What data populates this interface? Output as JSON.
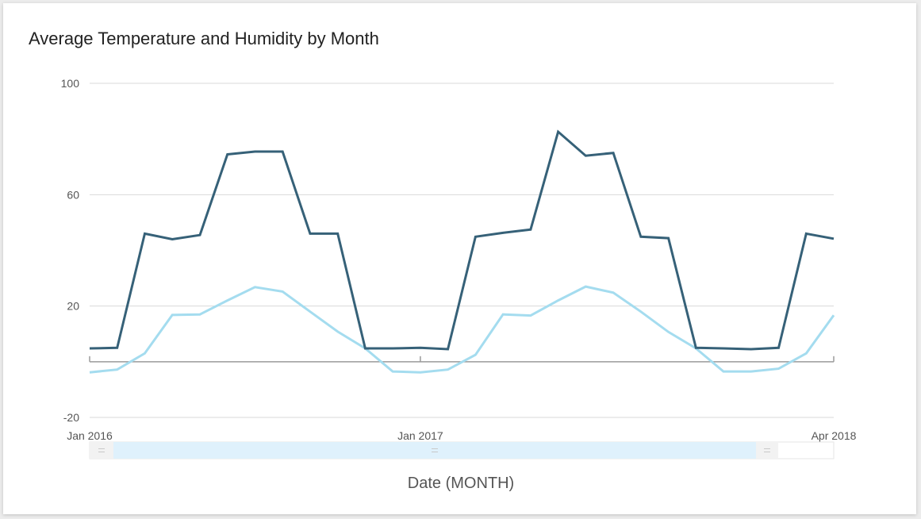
{
  "chart_data": {
    "type": "line",
    "title": "Average Temperature and Humidity by Month",
    "xlabel": "Date (MONTH)",
    "ylabel": "",
    "ylim": [
      -20,
      100
    ],
    "y_ticks": [
      100,
      60,
      20,
      -20
    ],
    "x_tick_labels": [
      {
        "label": "Jan 2016",
        "index": 0
      },
      {
        "label": "Jan 2017",
        "index": 12
      },
      {
        "label": "Apr 2018",
        "index": 27
      }
    ],
    "x": [
      "Jan 2016",
      "Feb 2016",
      "Mar 2016",
      "Apr 2016",
      "May 2016",
      "Jun 2016",
      "Jul 2016",
      "Aug 2016",
      "Sep 2016",
      "Oct 2016",
      "Nov 2016",
      "Dec 2016",
      "Jan 2017",
      "Feb 2017",
      "Mar 2017",
      "Apr 2017",
      "May 2017",
      "Jun 2017",
      "Jul 2017",
      "Aug 2017",
      "Sep 2017",
      "Oct 2017",
      "Nov 2017",
      "Dec 2017",
      "Jan 2018",
      "Feb 2018",
      "Mar 2018",
      "Apr 2018"
    ],
    "series": [
      {
        "color": "#366178",
        "values": [
          4.8,
          5.0,
          46.0,
          44.0,
          45.5,
          74.5,
          75.5,
          75.5,
          46.0,
          46.0,
          4.8,
          4.8,
          5.0,
          4.5,
          44.9,
          46.3,
          47.5,
          82.6,
          74.0,
          75.0,
          44.9,
          44.4,
          5.0,
          4.8,
          4.5,
          5.0,
          46.0,
          44.2
        ]
      },
      {
        "color": "#a4dcef",
        "values": [
          -3.8,
          -2.8,
          3.0,
          16.8,
          17.0,
          22.0,
          26.8,
          25.2,
          18.0,
          10.8,
          4.8,
          -3.5,
          -3.8,
          -2.8,
          2.5,
          17.0,
          16.6,
          22.0,
          27.0,
          24.8,
          18.0,
          10.7,
          4.8,
          -3.5,
          -3.5,
          -2.5,
          3.0,
          16.7
        ]
      }
    ],
    "grid": true,
    "legend": "none"
  },
  "range_selector": {
    "fill_color": "#dff1fc"
  }
}
